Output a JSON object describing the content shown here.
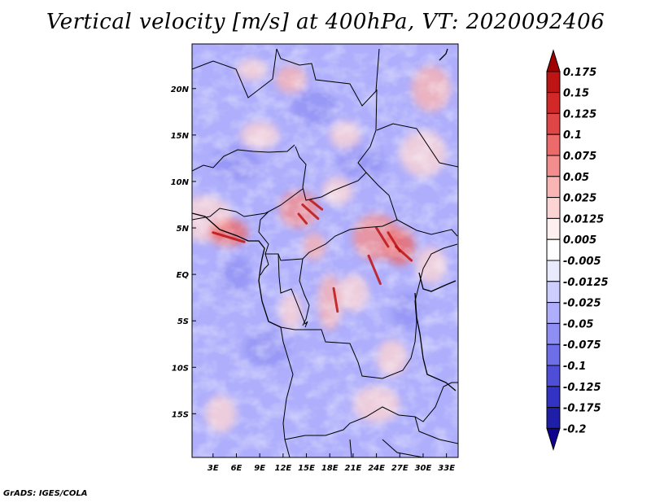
{
  "chart_data": {
    "type": "heatmap",
    "title": "Vertical velocity [m/s] at 400hPa, VT: 2020092406",
    "xlabel": "",
    "ylabel": "",
    "x_ticks": [
      "3E",
      "6E",
      "9E",
      "12E",
      "15E",
      "18E",
      "21E",
      "24E",
      "27E",
      "30E",
      "33E"
    ],
    "x_tick_values": [
      3,
      6,
      9,
      12,
      15,
      18,
      21,
      24,
      27,
      30,
      33
    ],
    "y_ticks": [
      "20N",
      "15N",
      "10N",
      "5N",
      "EQ",
      "5S",
      "10S",
      "15S"
    ],
    "y_tick_values": [
      20,
      15,
      10,
      5,
      0,
      -5,
      -10,
      -15
    ],
    "xlim": [
      0.3,
      34.5
    ],
    "ylim": [
      -19.7,
      24.8
    ],
    "colorbar": {
      "levels": [
        "0.175",
        "0.15",
        "0.125",
        "0.1",
        "0.075",
        "0.05",
        "0.025",
        "0.0125",
        "0.005",
        "-0.005",
        "-0.0125",
        "-0.025",
        "-0.05",
        "-0.075",
        "-0.1",
        "-0.125",
        "-0.175",
        "-0.2"
      ],
      "colors": [
        "#a00000",
        "#be1414",
        "#d22828",
        "#e14646",
        "#ec6a6a",
        "#f48e8e",
        "#f9b4b4",
        "#fcd4d4",
        "#fff0f0",
        "#ffffff",
        "#eaeaff",
        "#cdcdff",
        "#aeaefc",
        "#8e8ef4",
        "#6e6ee8",
        "#4e4ed8",
        "#3232c4",
        "#1e1ea8",
        "#100090"
      ]
    },
    "field_summary": "Mottled field over Central Africa, dominated by weak negative (blue) values; bands of positive (red) values over the Gulf of Guinea coast, N Cameroon/CAR, South Sudan and the eastern DRC, with strongest updrafts (~0.1 to 0.175 m/s) near 5N 14-17E and 2-5N 24-28E."
  },
  "credit": "GrADS: IGES/COLA"
}
